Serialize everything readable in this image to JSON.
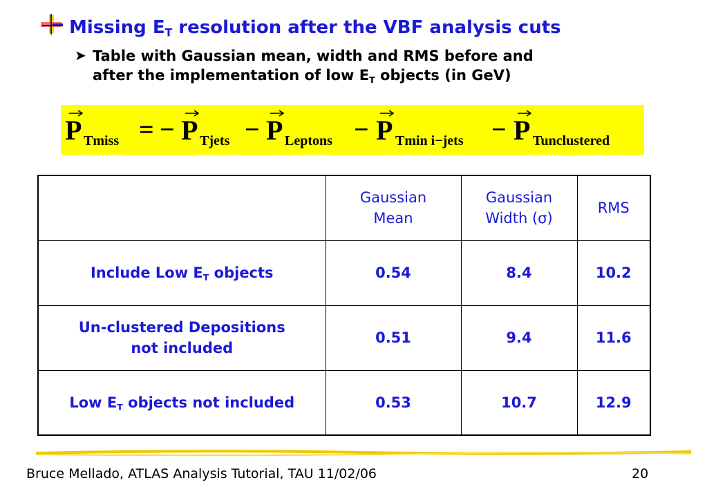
{
  "title": {
    "pre": "Missing E",
    "sub": "T",
    "post": " resolution after the VBF analysis cuts"
  },
  "bullet": {
    "line1": "Table with Gaussian mean, width and RMS before and",
    "line2_pre": "after the implementation of low E",
    "line2_sub": "T",
    "line2_post": " objects (in GeV)"
  },
  "formula": {
    "P": "P",
    "equals": "=",
    "minus": "−",
    "t1": "Tmiss",
    "t2": "Tjets",
    "t3": "Leptons",
    "t4": "Tmin i−jets",
    "t5": "Tunclustered",
    "background": "#ffff00"
  },
  "table": {
    "headers": {
      "mean_line1": "Gaussian",
      "mean_line2": "Mean",
      "width_line1": "Gaussian",
      "width_line2": "Width (σ)",
      "rms": "RMS"
    },
    "rows": [
      {
        "label_pre": "Include Low E",
        "label_sub": "T",
        "label_post": " objects",
        "mean": "0.54",
        "width": "8.4",
        "rms": "10.2"
      },
      {
        "label_line1": "Un-clustered Depositions",
        "label_line2": "not included",
        "mean": "0.51",
        "width": "9.4",
        "rms": "11.6"
      },
      {
        "label_pre": "Low E",
        "label_sub": "T",
        "label_post": " objects not included",
        "mean": "0.53",
        "width": "10.7",
        "rms": "12.9"
      }
    ]
  },
  "footer": {
    "left": "Bruce Mellado, ATLAS Analysis Tutorial, TAU 11/02/06",
    "page": "20"
  },
  "colors": {
    "text_blue": "#1a1ad6",
    "accent_yellow": "#ffff00",
    "rule_yellow": "#f0c800"
  }
}
